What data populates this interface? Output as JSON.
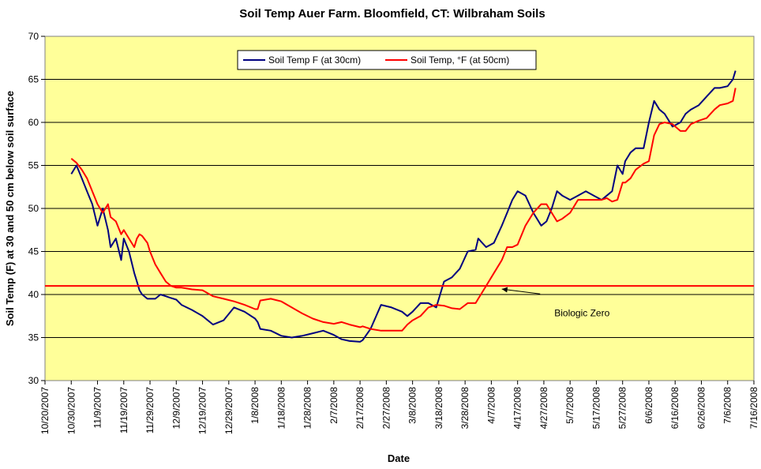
{
  "chart_data": {
    "type": "line",
    "title": "Soil Temp Auer Farm. Bloomfield, CT: Wilbraham Soils",
    "xlabel": "Date",
    "ylabel": "Soil Temp (F) at 30 and 50 cm below soil surface",
    "ylim": [
      30,
      70
    ],
    "yticks": [
      30,
      35,
      40,
      45,
      50,
      55,
      60,
      65,
      70
    ],
    "xlim": [
      "2007-10-20",
      "2008-07-16"
    ],
    "xticks": [
      "10/20/2007",
      "10/30/2007",
      "11/9/2007",
      "11/19/2007",
      "11/29/2007",
      "12/9/2007",
      "12/19/2007",
      "12/29/2007",
      "1/8/2008",
      "1/18/2008",
      "1/28/2008",
      "2/7/2008",
      "2/17/2008",
      "2/27/2008",
      "3/8/2008",
      "3/18/2008",
      "3/28/2008",
      "4/7/2008",
      "4/17/2008",
      "4/27/2008",
      "5/7/2008",
      "5/17/2008",
      "5/27/2008",
      "6/6/2008",
      "6/16/2008",
      "6/26/2008",
      "7/6/2008",
      "7/16/2008"
    ],
    "grid": "horizontal",
    "background": "#ffff99",
    "legend_position": "top-center",
    "series": [
      {
        "name": "Soil Temp F (at 30cm)",
        "color": "#000080",
        "x": [
          "2007-10-30",
          "2007-11-01",
          "2007-11-03",
          "2007-11-05",
          "2007-11-07",
          "2007-11-09",
          "2007-11-11",
          "2007-11-13",
          "2007-11-14",
          "2007-11-16",
          "2007-11-18",
          "2007-11-19",
          "2007-11-21",
          "2007-11-23",
          "2007-11-24",
          "2007-11-25",
          "2007-11-26",
          "2007-11-28",
          "2007-11-29",
          "2007-12-01",
          "2007-12-03",
          "2007-12-05",
          "2007-12-07",
          "2007-12-09",
          "2007-12-11",
          "2007-12-13",
          "2007-12-15",
          "2007-12-19",
          "2007-12-23",
          "2007-12-27",
          "2007-12-31",
          "2008-01-04",
          "2008-01-08",
          "2008-01-09",
          "2008-01-10",
          "2008-01-14",
          "2008-01-18",
          "2008-01-22",
          "2008-01-26",
          "2008-01-30",
          "2008-02-03",
          "2008-02-07",
          "2008-02-10",
          "2008-02-13",
          "2008-02-17",
          "2008-02-18",
          "2008-02-21",
          "2008-02-25",
          "2008-02-29",
          "2008-03-04",
          "2008-03-06",
          "2008-03-08",
          "2008-03-11",
          "2008-03-14",
          "2008-03-17",
          "2008-03-20",
          "2008-03-23",
          "2008-03-26",
          "2008-03-29",
          "2008-04-01",
          "2008-04-02",
          "2008-04-05",
          "2008-04-08",
          "2008-04-11",
          "2008-04-13",
          "2008-04-15",
          "2008-04-17",
          "2008-04-20",
          "2008-04-23",
          "2008-04-26",
          "2008-04-28",
          "2008-04-30",
          "2008-05-02",
          "2008-05-04",
          "2008-05-07",
          "2008-05-10",
          "2008-05-13",
          "2008-05-16",
          "2008-05-19",
          "2008-05-21",
          "2008-05-23",
          "2008-05-25",
          "2008-05-27",
          "2008-05-28",
          "2008-05-30",
          "2008-06-01",
          "2008-06-04",
          "2008-06-06",
          "2008-06-08",
          "2008-06-10",
          "2008-06-12",
          "2008-06-15",
          "2008-06-18",
          "2008-06-20",
          "2008-06-22",
          "2008-06-25",
          "2008-06-28",
          "2008-07-01",
          "2008-07-03",
          "2008-07-06",
          "2008-07-08",
          "2008-07-09"
        ],
        "values": [
          54.0,
          55.0,
          53.5,
          52.0,
          50.5,
          48.0,
          50.0,
          47.5,
          45.5,
          46.5,
          44.0,
          46.5,
          45.0,
          42.5,
          41.5,
          40.5,
          40.0,
          39.5,
          39.5,
          39.5,
          40.0,
          39.8,
          39.6,
          39.4,
          38.8,
          38.5,
          38.2,
          37.5,
          36.5,
          37.0,
          38.5,
          38.0,
          37.2,
          36.8,
          36.0,
          35.8,
          35.2,
          35.0,
          35.2,
          35.5,
          35.8,
          35.3,
          34.8,
          34.6,
          34.5,
          34.7,
          36.0,
          38.8,
          38.5,
          38.0,
          37.5,
          38.0,
          39.0,
          39.0,
          38.5,
          41.5,
          42.0,
          43.0,
          45.0,
          45.2,
          46.5,
          45.5,
          46.0,
          48.0,
          49.5,
          51.0,
          52.0,
          51.5,
          49.5,
          48.0,
          48.5,
          50.0,
          52.0,
          51.5,
          51.0,
          51.5,
          52.0,
          51.5,
          51.0,
          51.5,
          52.0,
          55.0,
          54.0,
          55.5,
          56.5,
          57.0,
          57.0,
          60.0,
          62.5,
          61.5,
          61.0,
          59.5,
          60.0,
          61.0,
          61.5,
          62.0,
          63.0,
          64.0,
          64.0,
          64.2,
          65.0,
          66.0
        ]
      },
      {
        "name": "Soil Temp, °F (at 50cm)",
        "color": "#ff0000",
        "x": [
          "2007-10-30",
          "2007-11-01",
          "2007-11-03",
          "2007-11-05",
          "2007-11-07",
          "2007-11-09",
          "2007-11-11",
          "2007-11-13",
          "2007-11-14",
          "2007-11-16",
          "2007-11-18",
          "2007-11-19",
          "2007-11-21",
          "2007-11-23",
          "2007-11-24",
          "2007-11-25",
          "2007-11-26",
          "2007-11-28",
          "2007-11-29",
          "2007-12-01",
          "2007-12-03",
          "2007-12-05",
          "2007-12-07",
          "2007-12-09",
          "2007-12-11",
          "2007-12-13",
          "2007-12-15",
          "2007-12-19",
          "2007-12-23",
          "2007-12-27",
          "2007-12-31",
          "2008-01-04",
          "2008-01-08",
          "2008-01-09",
          "2008-01-10",
          "2008-01-14",
          "2008-01-18",
          "2008-01-22",
          "2008-01-26",
          "2008-01-30",
          "2008-02-03",
          "2008-02-07",
          "2008-02-10",
          "2008-02-13",
          "2008-02-17",
          "2008-02-18",
          "2008-02-21",
          "2008-02-25",
          "2008-02-29",
          "2008-03-04",
          "2008-03-06",
          "2008-03-08",
          "2008-03-11",
          "2008-03-14",
          "2008-03-17",
          "2008-03-20",
          "2008-03-23",
          "2008-03-26",
          "2008-03-29",
          "2008-04-01",
          "2008-04-02",
          "2008-04-05",
          "2008-04-08",
          "2008-04-11",
          "2008-04-13",
          "2008-04-15",
          "2008-04-17",
          "2008-04-20",
          "2008-04-23",
          "2008-04-26",
          "2008-04-28",
          "2008-04-30",
          "2008-05-02",
          "2008-05-04",
          "2008-05-07",
          "2008-05-10",
          "2008-05-13",
          "2008-05-16",
          "2008-05-19",
          "2008-05-21",
          "2008-05-23",
          "2008-05-25",
          "2008-05-27",
          "2008-05-28",
          "2008-05-30",
          "2008-06-01",
          "2008-06-04",
          "2008-06-06",
          "2008-06-08",
          "2008-06-10",
          "2008-06-12",
          "2008-06-15",
          "2008-06-18",
          "2008-06-20",
          "2008-06-22",
          "2008-06-25",
          "2008-06-28",
          "2008-07-01",
          "2008-07-03",
          "2008-07-06",
          "2008-07-08",
          "2008-07-09"
        ],
        "values": [
          55.8,
          55.3,
          54.5,
          53.5,
          52.0,
          50.5,
          49.5,
          50.5,
          49.0,
          48.5,
          47.0,
          47.5,
          46.5,
          45.5,
          46.5,
          47.0,
          46.8,
          46.0,
          45.0,
          43.5,
          42.5,
          41.5,
          41.0,
          40.8,
          40.8,
          40.7,
          40.6,
          40.5,
          39.8,
          39.5,
          39.2,
          38.8,
          38.3,
          38.3,
          39.3,
          39.5,
          39.2,
          38.5,
          37.8,
          37.2,
          36.8,
          36.6,
          36.8,
          36.5,
          36.2,
          36.3,
          36.0,
          35.8,
          35.8,
          35.8,
          36.5,
          37.0,
          37.5,
          38.5,
          38.8,
          38.7,
          38.4,
          38.3,
          39.0,
          39.0,
          39.5,
          41.0,
          42.5,
          44.0,
          45.5,
          45.5,
          45.8,
          48.0,
          49.5,
          50.5,
          50.5,
          49.5,
          48.5,
          48.8,
          49.5,
          51.0,
          51.0,
          51.0,
          51.0,
          51.2,
          50.8,
          51.0,
          53.0,
          53.0,
          53.5,
          54.5,
          55.2,
          55.5,
          58.5,
          59.8,
          60.0,
          59.8,
          59.0,
          59.0,
          59.8,
          60.2,
          60.5,
          61.5,
          62.0,
          62.2,
          62.5,
          64.0
        ]
      },
      {
        "name": "",
        "color": "#ff0000",
        "x": [
          "2007-10-20",
          "2008-07-16"
        ],
        "values": [
          41,
          41
        ]
      }
    ],
    "annotations": [
      {
        "text": "Biologic Zero",
        "x": "2008-05-01",
        "y": 37.5,
        "arrow_to": [
          "2008-04-11",
          41
        ]
      }
    ]
  }
}
